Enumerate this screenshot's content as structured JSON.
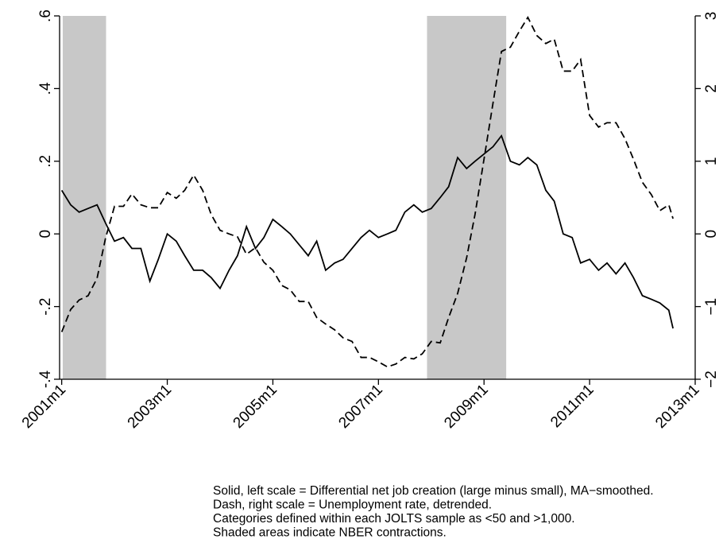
{
  "chart_data": {
    "type": "line",
    "x": [
      2001,
      2001.17,
      2001.33,
      2001.5,
      2001.67,
      2001.83,
      2002,
      2002.17,
      2002.33,
      2002.5,
      2002.67,
      2002.83,
      2003,
      2003.17,
      2003.33,
      2003.5,
      2003.67,
      2003.83,
      2004,
      2004.17,
      2004.33,
      2004.5,
      2004.67,
      2004.83,
      2005,
      2005.17,
      2005.33,
      2005.5,
      2005.67,
      2005.83,
      2006,
      2006.17,
      2006.33,
      2006.5,
      2006.67,
      2006.83,
      2007,
      2007.17,
      2007.33,
      2007.5,
      2007.67,
      2007.83,
      2008,
      2008.17,
      2008.33,
      2008.5,
      2008.67,
      2008.83,
      2009,
      2009.17,
      2009.33,
      2009.5,
      2009.67,
      2009.83,
      2010,
      2010.17,
      2010.33,
      2010.5,
      2010.67,
      2010.83,
      2011,
      2011.17,
      2011.33,
      2011.5,
      2011.67,
      2011.83,
      2012,
      2012.17,
      2012.33,
      2012.5,
      2012.58
    ],
    "series": [
      {
        "color": "#000000",
        "dash": false,
        "axis": "y",
        "values": [
          0.12,
          0.08,
          0.06,
          0.07,
          0.08,
          0.03,
          -0.02,
          -0.01,
          -0.04,
          -0.04,
          -0.13,
          -0.07,
          0.0,
          -0.02,
          -0.06,
          -0.1,
          -0.1,
          -0.12,
          -0.15,
          -0.1,
          -0.06,
          0.02,
          -0.04,
          -0.01,
          0.04,
          0.02,
          0.0,
          -0.03,
          -0.06,
          -0.02,
          -0.1,
          -0.08,
          -0.07,
          -0.04,
          -0.01,
          0.01,
          -0.01,
          0.0,
          0.01,
          0.06,
          0.08,
          0.06,
          0.07,
          0.1,
          0.13,
          0.21,
          0.18,
          0.2,
          0.22,
          0.24,
          0.27,
          0.2,
          0.19,
          0.21,
          0.19,
          0.12,
          0.09,
          0.0,
          -0.01,
          -0.08,
          -0.07,
          -0.1,
          -0.08,
          -0.11,
          -0.08,
          -0.12,
          -0.17,
          -0.18,
          -0.19,
          -0.21,
          -0.26
        ]
      },
      {
        "color": "#000000",
        "dash": true,
        "axis": "y2",
        "values": [
          -1.35,
          -1.04,
          -0.91,
          -0.85,
          -0.61,
          -0.06,
          0.38,
          0.38,
          0.55,
          0.4,
          0.36,
          0.36,
          0.57,
          0.49,
          0.6,
          0.81,
          0.6,
          0.27,
          0.05,
          0.0,
          -0.04,
          -0.28,
          -0.19,
          -0.39,
          -0.5,
          -0.71,
          -0.77,
          -0.93,
          -0.93,
          -1.15,
          -1.24,
          -1.32,
          -1.43,
          -1.48,
          -1.7,
          -1.7,
          -1.76,
          -1.83,
          -1.79,
          -1.7,
          -1.72,
          -1.65,
          -1.48,
          -1.5,
          -1.15,
          -0.82,
          -0.33,
          0.27,
          1.03,
          1.8,
          2.51,
          2.57,
          2.79,
          2.98,
          2.73,
          2.62,
          2.68,
          2.24,
          2.24,
          2.4,
          1.63,
          1.47,
          1.53,
          1.53,
          1.31,
          1.03,
          0.71,
          0.54,
          0.32,
          0.4,
          0.21
        ]
      }
    ],
    "shaded_periods": [
      [
        2001.02,
        2001.84
      ],
      [
        2007.92,
        2009.42
      ]
    ],
    "shade_color": "#c8c8c8",
    "xlim": [
      2000.96,
      2013
    ],
    "xticks": [
      {
        "value": 2001,
        "label": "2001m1"
      },
      {
        "value": 2003,
        "label": "2003m1"
      },
      {
        "value": 2005,
        "label": "2005m1"
      },
      {
        "value": 2007,
        "label": "2007m1"
      },
      {
        "value": 2009,
        "label": "2009m1"
      },
      {
        "value": 2011,
        "label": "2011m1"
      },
      {
        "value": 2013,
        "label": "2013m1"
      }
    ],
    "ylim": [
      -0.4,
      0.6
    ],
    "yticks": [
      {
        "value": -0.4,
        "label": "-.4"
      },
      {
        "value": -0.2,
        "label": "-.2"
      },
      0,
      {
        "value": 0.2,
        "label": ".2"
      },
      {
        "value": 0.4,
        "label": ".4"
      },
      {
        "value": 0.6,
        "label": ".6"
      }
    ],
    "y2lim": [
      -2,
      3
    ],
    "y2ticks": [
      {
        "value": -2,
        "label": "−2"
      },
      {
        "value": -1,
        "label": "−1"
      },
      0,
      1,
      2,
      3
    ],
    "notes": [
      "Solid, left scale = Differential net job creation (large minus small), MA−smoothed.",
      "Dash, right scale = Unemployment rate, detrended.",
      "Categories defined within each JOLTS sample as <50 and >1,000.",
      "Shaded areas indicate NBER contractions."
    ]
  }
}
